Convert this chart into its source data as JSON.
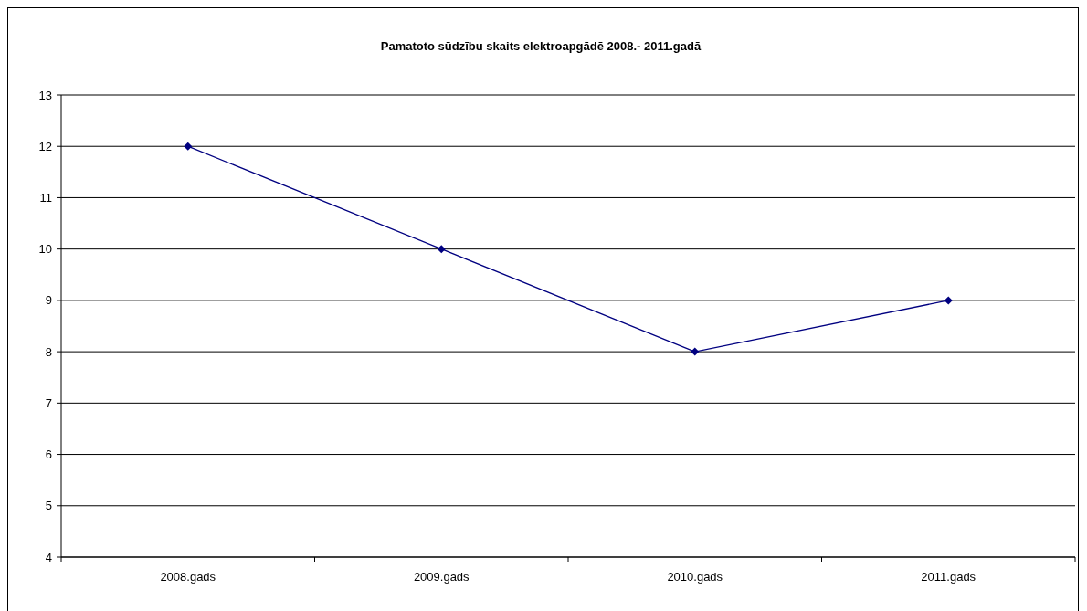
{
  "chart_data": {
    "type": "line",
    "title": "Pamatoto sūdzību skaits elektroapgādē 2008.- 2011.gadā",
    "categories": [
      "2008.gads",
      "2009.gads",
      "2010.gads",
      "2011.gads"
    ],
    "series": [
      {
        "color": "#000080",
        "values": [
          12,
          10,
          8,
          9
        ]
      }
    ],
    "ylim": [
      4,
      13
    ],
    "yticks": [
      4,
      5,
      6,
      7,
      8,
      9,
      10,
      11,
      12,
      13
    ],
    "grid": "y",
    "marker": "diamond",
    "line_style": "solid"
  }
}
